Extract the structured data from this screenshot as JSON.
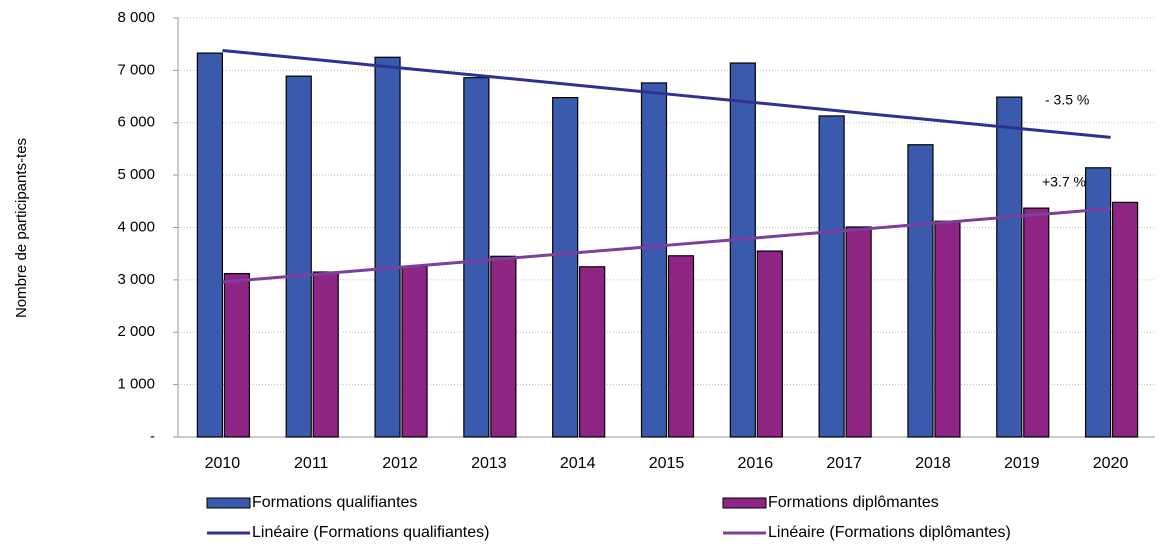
{
  "chart_data": {
    "type": "bar",
    "y_label": "Nombre de participants-tes",
    "categories": [
      "2010",
      "2011",
      "2012",
      "2013",
      "2014",
      "2015",
      "2016",
      "2017",
      "2018",
      "2019",
      "2020"
    ],
    "series": [
      {
        "name": "Formations qualifiantes",
        "type": "bar",
        "color": "#3a5bad",
        "values": [
          7330,
          6890,
          7250,
          6860,
          6480,
          6760,
          7140,
          6130,
          5580,
          6490,
          5140
        ]
      },
      {
        "name": "Formations diplômantes",
        "type": "bar",
        "color": "#8e2585",
        "values": [
          3120,
          3150,
          3260,
          3450,
          3250,
          3460,
          3550,
          4010,
          4120,
          4370,
          4480
        ]
      },
      {
        "name": "Linéaire (Formations qualifiantes)",
        "type": "line",
        "color": "#2e3192",
        "values": [
          7380,
          7214,
          7048,
          6882,
          6716,
          6550,
          6384,
          6218,
          6052,
          5886,
          5720
        ]
      },
      {
        "name": "Linéaire (Formations diplômantes)",
        "type": "line",
        "color": "#7b3f9e",
        "values": [
          2960,
          3100,
          3240,
          3380,
          3520,
          3660,
          3800,
          3940,
          4080,
          4220,
          4360
        ]
      }
    ],
    "annotations": [
      "- 3.5 %",
      "+3.7 %"
    ],
    "ylim": [
      0,
      8000
    ],
    "yticks": [
      {
        "value": 0,
        "label": "-"
      },
      {
        "value": 1000,
        "label": "1 000"
      },
      {
        "value": 2000,
        "label": "2 000"
      },
      {
        "value": 3000,
        "label": "3 000"
      },
      {
        "value": 4000,
        "label": "4 000"
      },
      {
        "value": 5000,
        "label": "5 000"
      },
      {
        "value": 6000,
        "label": "6 000"
      },
      {
        "value": 7000,
        "label": "7 000"
      },
      {
        "value": 8000,
        "label": "8 000"
      }
    ],
    "grid": true
  }
}
